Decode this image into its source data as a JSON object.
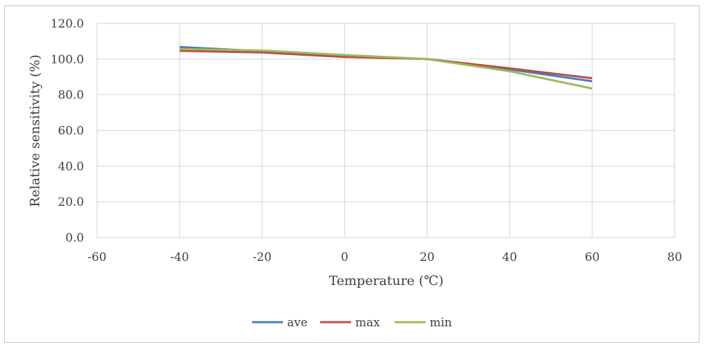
{
  "chart_data": {
    "type": "line",
    "xlabel": "Temperature (℃)",
    "ylabel": "Relative sensitivity (%)",
    "xlim": [
      -60,
      80
    ],
    "ylim": [
      0,
      120
    ],
    "x_ticks": [
      "-60",
      "-40",
      "-20",
      "0",
      "20",
      "40",
      "60",
      "80"
    ],
    "y_ticks": [
      "0.0",
      "20.0",
      "40.0",
      "60.0",
      "80.0",
      "100.0",
      "120.0"
    ],
    "x_tick_values": [
      -60,
      -40,
      -20,
      0,
      20,
      40,
      60,
      80
    ],
    "y_tick_values": [
      0,
      20,
      40,
      60,
      80,
      100,
      120
    ],
    "grid": true,
    "legend_position": "bottom-center",
    "x": [
      -40,
      -20,
      0,
      20,
      40,
      60
    ],
    "series": [
      {
        "name": "ave",
        "color": "#4a7ebb",
        "values": [
          106.8,
          104.4,
          101.9,
          100.0,
          94.2,
          87.6
        ]
      },
      {
        "name": "max",
        "color": "#be4b48",
        "values": [
          104.6,
          103.7,
          101.2,
          100.0,
          94.8,
          89.3
        ]
      },
      {
        "name": "min",
        "color": "#9bbb59",
        "values": [
          105.6,
          104.8,
          102.3,
          100.0,
          93.2,
          83.5
        ]
      }
    ]
  }
}
